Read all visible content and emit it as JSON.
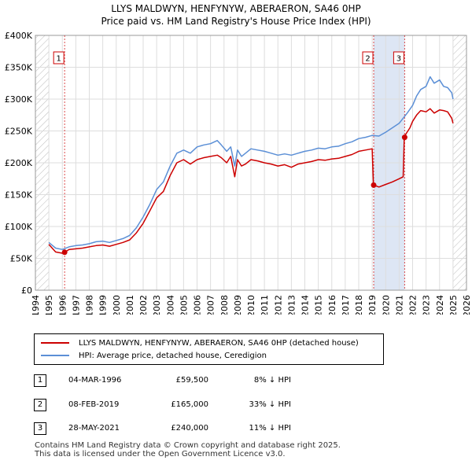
{
  "title_line1": "LLYS MALDWYN, HENFYNYW, ABERAERON, SA46 0HP",
  "title_line2": "Price paid vs. HM Land Registry's House Price Index (HPI)",
  "colors": {
    "red": "#cc0000",
    "blue": "#5b8fd6",
    "grid": "#dddddd",
    "band": "#dde6f4",
    "hatch": "#bbbbbb"
  },
  "chart_data": {
    "type": "line",
    "title": "Price paid vs. HM Land Registry's House Price Index (HPI)",
    "xlabel": "",
    "ylabel": "",
    "xlim": [
      1994,
      2026
    ],
    "ylim": [
      0,
      400000
    ],
    "x_ticks": [
      1994,
      1995,
      1996,
      1997,
      1998,
      1999,
      2000,
      2001,
      2002,
      2003,
      2004,
      2005,
      2006,
      2007,
      2008,
      2009,
      2010,
      2011,
      2012,
      2013,
      2014,
      2015,
      2016,
      2017,
      2018,
      2019,
      2020,
      2021,
      2022,
      2023,
      2024,
      2025,
      2026
    ],
    "y_ticks": [
      0,
      50000,
      100000,
      150000,
      200000,
      250000,
      300000,
      350000,
      400000
    ],
    "y_tick_labels": [
      "£0",
      "£50K",
      "£100K",
      "£150K",
      "£200K",
      "£250K",
      "£300K",
      "£350K",
      "£400K"
    ],
    "hatched_ranges": [
      [
        1994,
        1995.0
      ],
      [
        2025.0,
        2026
      ]
    ],
    "series": [
      {
        "name": "LLYS MALDWYN, HENFYNYW, ABERAERON, SA46 0HP (detached house)",
        "color": "#cc0000",
        "x": [
          1995.0,
          1995.5,
          1996.0,
          1996.17,
          1996.5,
          1997.0,
          1997.5,
          1998.0,
          1998.5,
          1999.0,
          1999.5,
          2000.0,
          2000.5,
          2001.0,
          2001.5,
          2002.0,
          2002.5,
          2003.0,
          2003.5,
          2004.0,
          2004.5,
          2005.0,
          2005.5,
          2006.0,
          2006.5,
          2007.0,
          2007.5,
          2007.8,
          2008.2,
          2008.5,
          2008.8,
          2009.0,
          2009.3,
          2009.6,
          2010.0,
          2010.5,
          2011.0,
          2011.5,
          2012.0,
          2012.5,
          2013.0,
          2013.5,
          2014.0,
          2014.5,
          2015.0,
          2015.5,
          2016.0,
          2016.5,
          2017.0,
          2017.5,
          2018.0,
          2018.5,
          2019.0,
          2019.09,
          2019.11,
          2019.5,
          2020.0,
          2020.5,
          2021.0,
          2021.3,
          2021.38,
          2021.41,
          2021.5,
          2021.8,
          2022.0,
          2022.3,
          2022.6,
          2023.0,
          2023.3,
          2023.6,
          2024.0,
          2024.3,
          2024.6,
          2024.9,
          2025.0
        ],
        "y": [
          72000,
          60000,
          58000,
          59500,
          64000,
          65000,
          66000,
          68000,
          70000,
          71000,
          69000,
          72000,
          75000,
          79000,
          90000,
          105000,
          125000,
          145000,
          155000,
          180000,
          200000,
          205000,
          198000,
          205000,
          208000,
          210000,
          212000,
          208000,
          200000,
          210000,
          178000,
          205000,
          195000,
          198000,
          205000,
          203000,
          200000,
          198000,
          195000,
          197000,
          193000,
          198000,
          200000,
          202000,
          205000,
          204000,
          206000,
          207000,
          210000,
          213000,
          218000,
          220000,
          222000,
          165000,
          165000,
          162000,
          166000,
          170000,
          175000,
          178000,
          240000,
          240000,
          245000,
          255000,
          265000,
          275000,
          282000,
          280000,
          285000,
          278000,
          283000,
          282000,
          280000,
          270000,
          262000
        ]
      },
      {
        "name": "HPI: Average price, detached house, Ceredigion",
        "color": "#5b8fd6",
        "x": [
          1995.0,
          1995.5,
          1996.0,
          1996.5,
          1997.0,
          1997.5,
          1998.0,
          1998.5,
          1999.0,
          1999.5,
          2000.0,
          2000.5,
          2001.0,
          2001.5,
          2002.0,
          2002.5,
          2003.0,
          2003.5,
          2004.0,
          2004.5,
          2005.0,
          2005.5,
          2006.0,
          2006.5,
          2007.0,
          2007.5,
          2007.8,
          2008.2,
          2008.5,
          2008.8,
          2009.0,
          2009.3,
          2009.6,
          2010.0,
          2010.5,
          2011.0,
          2011.5,
          2012.0,
          2012.5,
          2013.0,
          2013.5,
          2014.0,
          2014.5,
          2015.0,
          2015.5,
          2016.0,
          2016.5,
          2017.0,
          2017.5,
          2018.0,
          2018.5,
          2019.0,
          2019.5,
          2020.0,
          2020.5,
          2021.0,
          2021.3,
          2021.6,
          2022.0,
          2022.3,
          2022.6,
          2023.0,
          2023.3,
          2023.6,
          2024.0,
          2024.3,
          2024.6,
          2024.9,
          2025.0
        ],
        "y": [
          75000,
          66000,
          64000,
          68000,
          70000,
          71000,
          73000,
          76000,
          77000,
          75000,
          78000,
          81000,
          86000,
          98000,
          115000,
          135000,
          158000,
          170000,
          195000,
          215000,
          220000,
          215000,
          225000,
          228000,
          230000,
          235000,
          228000,
          218000,
          225000,
          195000,
          220000,
          210000,
          215000,
          222000,
          220000,
          218000,
          215000,
          212000,
          214000,
          212000,
          215000,
          218000,
          220000,
          223000,
          222000,
          225000,
          226000,
          230000,
          233000,
          238000,
          240000,
          243000,
          242000,
          248000,
          255000,
          262000,
          270000,
          278000,
          290000,
          305000,
          315000,
          320000,
          335000,
          325000,
          330000,
          320000,
          318000,
          310000,
          300000
        ]
      }
    ],
    "sales": [
      {
        "marker": "1",
        "x": 1996.17,
        "y": 59500
      },
      {
        "marker": "2",
        "x": 2019.11,
        "y": 165000
      },
      {
        "marker": "3",
        "x": 2021.41,
        "y": 240000
      }
    ]
  },
  "legend": {
    "property": "LLYS MALDWYN, HENFYNYW, ABERAERON, SA46 0HP (detached house)",
    "hpi": "HPI: Average price, detached house, Ceredigion"
  },
  "sales_table": [
    {
      "num": "1",
      "date": "04-MAR-1996",
      "price": "£59,500",
      "hpi": "8% ↓ HPI"
    },
    {
      "num": "2",
      "date": "08-FEB-2019",
      "price": "£165,000",
      "hpi": "33% ↓ HPI"
    },
    {
      "num": "3",
      "date": "28-MAY-2021",
      "price": "£240,000",
      "hpi": "11% ↓ HPI"
    }
  ],
  "footer": {
    "line1": "Contains HM Land Registry data © Crown copyright and database right 2025.",
    "line2": "This data is licensed under the Open Government Licence v3.0."
  }
}
